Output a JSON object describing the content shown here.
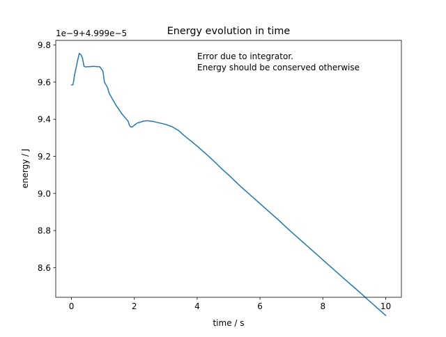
{
  "chart_data": {
    "type": "line",
    "title": "Energy evolution in time",
    "xlabel": "time / s",
    "ylabel": "energy / J",
    "offset_label": "1e−9+4.999e−5",
    "annotation_lines": [
      "Error due to integrator.",
      "Energy should be conserved otherwise"
    ],
    "xlim": [
      -0.5,
      10.5
    ],
    "ylim": [
      8.44,
      9.825
    ],
    "x_ticks": [
      0,
      2,
      4,
      6,
      8,
      10
    ],
    "x_tick_labels": [
      "0",
      "2",
      "4",
      "6",
      "8",
      "10"
    ],
    "y_ticks": [
      8.6,
      8.8,
      9.0,
      9.2,
      9.4,
      9.6,
      9.8
    ],
    "y_tick_labels": [
      "8.6",
      "8.8",
      "9.0",
      "9.2",
      "9.4",
      "9.6",
      "9.8"
    ],
    "grid": false,
    "series": [
      {
        "color": "#1f77b4",
        "x": [
          0.0,
          0.05,
          0.1,
          0.15,
          0.2,
          0.25,
          0.3,
          0.35,
          0.4,
          0.45,
          0.5,
          0.6,
          0.7,
          0.8,
          0.9,
          1.0,
          1.05,
          1.1,
          1.15,
          1.2,
          1.3,
          1.4,
          1.5,
          1.6,
          1.7,
          1.8,
          1.85,
          1.9,
          1.95,
          2.0,
          2.1,
          2.2,
          2.3,
          2.4,
          2.5,
          2.6,
          2.8,
          3.0,
          3.2,
          3.4,
          3.6,
          3.8,
          4.0,
          4.2,
          4.4,
          4.6,
          4.8,
          5.0,
          5.2,
          5.4,
          5.6,
          5.8,
          6.0,
          6.2,
          6.4,
          6.6,
          6.8,
          7.0,
          7.2,
          7.4,
          7.6,
          7.8,
          8.0,
          8.2,
          8.4,
          8.6,
          8.8,
          9.0,
          9.2,
          9.4,
          9.6,
          9.8,
          10.0
        ],
        "y": [
          9.585,
          9.586,
          9.64,
          9.68,
          9.72,
          9.755,
          9.748,
          9.73,
          9.685,
          9.682,
          9.683,
          9.684,
          9.685,
          9.684,
          9.683,
          9.66,
          9.6,
          9.585,
          9.57,
          9.54,
          9.51,
          9.48,
          9.455,
          9.43,
          9.41,
          9.39,
          9.365,
          9.358,
          9.36,
          9.368,
          9.38,
          9.385,
          9.39,
          9.392,
          9.39,
          9.388,
          9.38,
          9.372,
          9.36,
          9.34,
          9.31,
          9.283,
          9.255,
          9.225,
          9.195,
          9.163,
          9.13,
          9.1,
          9.067,
          9.035,
          9.005,
          8.975,
          8.945,
          8.915,
          8.885,
          8.855,
          8.823,
          8.792,
          8.762,
          8.732,
          8.702,
          8.672,
          8.642,
          8.612,
          8.582,
          8.552,
          8.522,
          8.493,
          8.463,
          8.432,
          8.402,
          8.372,
          8.342
        ]
      }
    ]
  }
}
